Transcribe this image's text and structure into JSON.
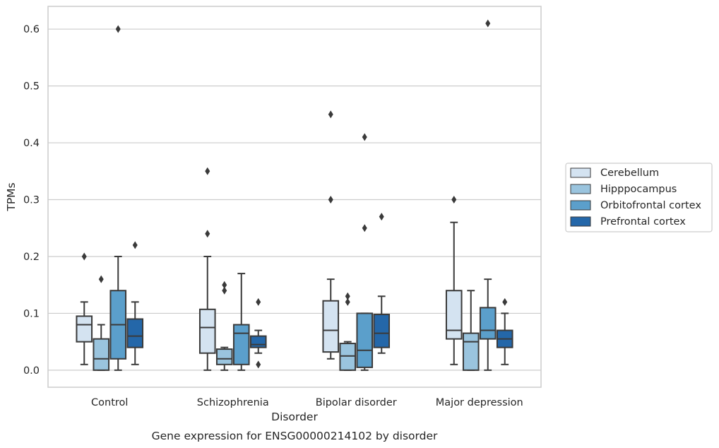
{
  "chart_data": {
    "type": "box",
    "title": "",
    "caption": "Gene expression for ENSG00000214102 by disorder",
    "xlabel": "Disorder",
    "ylabel": "TPMs",
    "ylim": [
      -0.03,
      0.64
    ],
    "yticks": [
      0.0,
      0.1,
      0.2,
      0.3,
      0.4,
      0.5,
      0.6
    ],
    "ytick_labels": [
      "0.0",
      "0.1",
      "0.2",
      "0.3",
      "0.4",
      "0.5",
      "0.6"
    ],
    "grid": true,
    "legend_position": "right",
    "categories": [
      "Control",
      "Schizophrenia",
      "Bipolar disorder",
      "Major depression"
    ],
    "series": [
      {
        "name": "Cerebellum",
        "color": "#d4e3f1",
        "boxes": [
          {
            "whislo": 0.01,
            "q1": 0.05,
            "med": 0.08,
            "q3": 0.095,
            "whishi": 0.12,
            "fliers": [
              0.2
            ]
          },
          {
            "whislo": 0.0,
            "q1": 0.03,
            "med": 0.075,
            "q3": 0.107,
            "whishi": 0.2,
            "fliers": [
              0.24,
              0.35
            ]
          },
          {
            "whislo": 0.02,
            "q1": 0.032,
            "med": 0.07,
            "q3": 0.122,
            "whishi": 0.16,
            "fliers": [
              0.3,
              0.45
            ]
          },
          {
            "whislo": 0.01,
            "q1": 0.055,
            "med": 0.07,
            "q3": 0.14,
            "whishi": 0.26,
            "fliers": [
              0.3
            ]
          }
        ]
      },
      {
        "name": "Hipppocampus",
        "color": "#9ac4de",
        "boxes": [
          {
            "whislo": 0.0,
            "q1": 0.0,
            "med": 0.02,
            "q3": 0.055,
            "whishi": 0.08,
            "fliers": [
              0.16
            ]
          },
          {
            "whislo": 0.0,
            "q1": 0.01,
            "med": 0.02,
            "q3": 0.037,
            "whishi": 0.04,
            "fliers": [
              0.14,
              0.15
            ]
          },
          {
            "whislo": 0.0,
            "q1": 0.0,
            "med": 0.025,
            "q3": 0.047,
            "whishi": 0.05,
            "fliers": [
              0.12,
              0.13
            ]
          },
          {
            "whislo": 0.0,
            "q1": 0.0,
            "med": 0.05,
            "q3": 0.065,
            "whishi": 0.14,
            "fliers": []
          }
        ]
      },
      {
        "name": "Orbitofrontal cortex",
        "color": "#5b9fcb",
        "boxes": [
          {
            "whislo": 0.0,
            "q1": 0.02,
            "med": 0.08,
            "q3": 0.14,
            "whishi": 0.2,
            "fliers": [
              0.6
            ]
          },
          {
            "whislo": 0.0,
            "q1": 0.01,
            "med": 0.065,
            "q3": 0.08,
            "whishi": 0.17,
            "fliers": []
          },
          {
            "whislo": 0.0,
            "q1": 0.005,
            "med": 0.035,
            "q3": 0.1,
            "whishi": 0.1,
            "fliers": [
              0.25,
              0.41
            ]
          },
          {
            "whislo": 0.0,
            "q1": 0.055,
            "med": 0.07,
            "q3": 0.11,
            "whishi": 0.16,
            "fliers": [
              0.61
            ]
          }
        ]
      },
      {
        "name": "Prefrontal cortex",
        "color": "#2467a9",
        "boxes": [
          {
            "whislo": 0.01,
            "q1": 0.04,
            "med": 0.06,
            "q3": 0.09,
            "whishi": 0.12,
            "fliers": [
              0.22
            ]
          },
          {
            "whislo": 0.03,
            "q1": 0.04,
            "med": 0.045,
            "q3": 0.06,
            "whishi": 0.07,
            "fliers": [
              0.01,
              0.12
            ]
          },
          {
            "whislo": 0.03,
            "q1": 0.04,
            "med": 0.065,
            "q3": 0.098,
            "whishi": 0.13,
            "fliers": [
              0.27
            ]
          },
          {
            "whislo": 0.01,
            "q1": 0.04,
            "med": 0.055,
            "q3": 0.07,
            "whishi": 0.1,
            "fliers": [
              0.12
            ]
          }
        ]
      }
    ]
  }
}
